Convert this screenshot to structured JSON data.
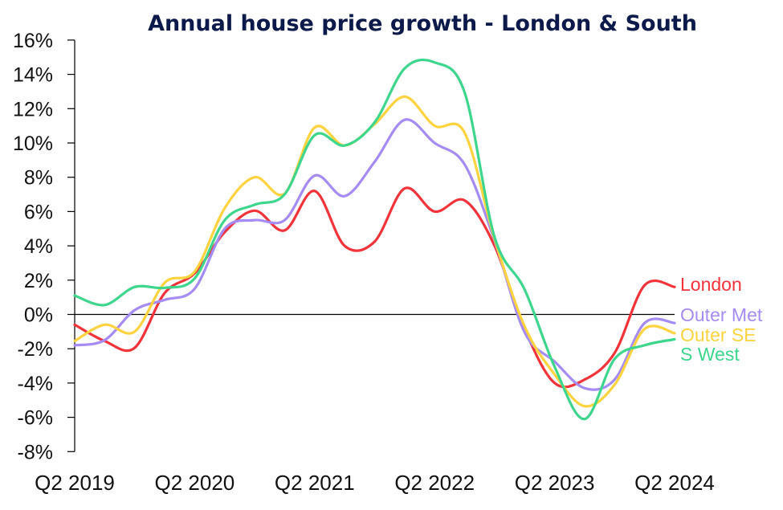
{
  "chart_data": {
    "type": "line",
    "title": "Annual house price growth - London & South",
    "xlabel": "",
    "ylabel": "",
    "ylim": [
      -8,
      16
    ],
    "yticks": [
      -8,
      -6,
      -4,
      -2,
      0,
      2,
      4,
      6,
      8,
      10,
      12,
      14,
      16
    ],
    "ytick_labels": [
      "-8%",
      "-6%",
      "-4%",
      "-2%",
      "0%",
      "2%",
      "4%",
      "6%",
      "8%",
      "10%",
      "12%",
      "14%",
      "16%"
    ],
    "x_tick_labels": [
      "Q2 2019",
      "Q2 2020",
      "Q2 2021",
      "Q2 2022",
      "Q2 2023",
      "Q2 2024"
    ],
    "x": [
      "Q2 2019",
      "Q3 2019",
      "Q4 2019",
      "Q1 2020",
      "Q2 2020",
      "Q3 2020",
      "Q4 2020",
      "Q1 2021",
      "Q2 2021",
      "Q3 2021",
      "Q4 2021",
      "Q1 2022",
      "Q2 2022",
      "Q3 2022",
      "Q4 2022",
      "Q1 2023",
      "Q2 2023",
      "Q3 2023",
      "Q4 2023",
      "Q1 2024",
      "Q2 2024"
    ],
    "grid": false,
    "legend": "inline-right",
    "series": [
      {
        "name": "London",
        "color": "#F2333A",
        "values": [
          -0.6,
          -1.55,
          -1.95,
          1.25,
          2.4,
          4.8,
          6.05,
          4.9,
          7.2,
          4.0,
          4.25,
          7.35,
          6.0,
          6.65,
          4.0,
          -0.85,
          -4.0,
          -3.8,
          -2.25,
          1.7,
          1.6
        ]
      },
      {
        "name": "Outer Met",
        "color": "#A58BF4",
        "values": [
          -1.8,
          -1.5,
          0.25,
          0.85,
          1.5,
          5.0,
          5.5,
          5.5,
          8.1,
          6.9,
          8.9,
          11.35,
          10.0,
          8.75,
          4.3,
          -1.05,
          -2.75,
          -4.3,
          -3.8,
          -0.5,
          -0.5
        ]
      },
      {
        "name": "Outer SE",
        "color": "#FDD340",
        "values": [
          -1.55,
          -0.6,
          -1.0,
          1.85,
          2.5,
          6.2,
          8.0,
          7.05,
          10.9,
          9.85,
          11.1,
          12.7,
          11.0,
          10.6,
          4.4,
          -0.7,
          -3.5,
          -5.35,
          -4.1,
          -0.85,
          -1.1
        ]
      },
      {
        "name": "S West",
        "color": "#3DD68C",
        "values": [
          1.1,
          0.55,
          1.6,
          1.55,
          2.1,
          5.5,
          6.4,
          7.0,
          10.45,
          9.85,
          11.2,
          14.35,
          14.7,
          12.95,
          4.5,
          1.45,
          -3.05,
          -6.1,
          -2.6,
          -1.8,
          -1.45
        ]
      }
    ]
  }
}
